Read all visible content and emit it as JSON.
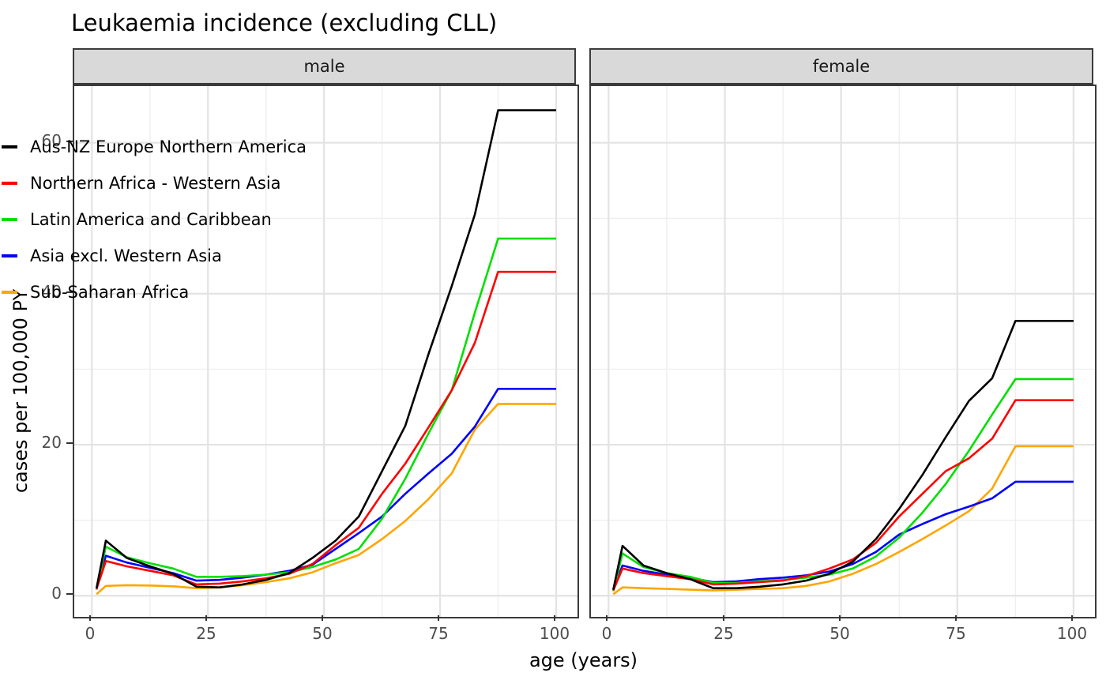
{
  "chart_data": {
    "type": "line",
    "title": "Leukaemia incidence (excluding CLL)",
    "xlabel": "age (years)",
    "ylabel": "cases per 100,000 PY",
    "facets": [
      {
        "label": "male"
      },
      {
        "label": "female"
      }
    ],
    "x_ticks": [
      0,
      25,
      50,
      75,
      100
    ],
    "x_minor_gridlines": [
      12.5,
      37.5,
      62.5,
      87.5
    ],
    "y_ticks": [
      0,
      20,
      40,
      60
    ],
    "y_minor_gridlines": [
      10,
      30,
      50
    ],
    "xlim": [
      -3.8,
      104.6
    ],
    "ylim": [
      -2.8,
      67.5
    ],
    "grid": true,
    "legend_position": "inside-left",
    "strip_fill": "#D9D9D9",
    "panel_border_color": "#3B3B3B",
    "major_grid_color": "#E3E3E3",
    "minor_grid_color": "#EFEFEF",
    "x": [
      1,
      3,
      7.5,
      12.5,
      17.5,
      22.5,
      27.5,
      32.5,
      37.5,
      42.5,
      47.5,
      52.5,
      57.5,
      62.5,
      67.5,
      72.5,
      77.5,
      82.5,
      87.5,
      100
    ],
    "series": [
      {
        "name": "Aus-NZ Europe Northern America",
        "color": "#000000",
        "male": [
          1.0,
          7.3,
          5.0,
          3.9,
          2.9,
          1.2,
          1.1,
          1.5,
          2.1,
          3.0,
          5.0,
          7.3,
          10.5,
          16.5,
          22.5,
          32.0,
          41.0,
          50.5,
          64.3,
          64.3
        ],
        "female": [
          0.8,
          6.6,
          4.0,
          3.0,
          2.2,
          1.0,
          1.0,
          1.2,
          1.5,
          2.0,
          2.9,
          4.5,
          7.5,
          11.5,
          16.0,
          21.0,
          25.8,
          28.8,
          36.4,
          36.4
        ]
      },
      {
        "name": "Northern Africa - Western Asia",
        "color": "#FF0000",
        "male": [
          0.9,
          4.6,
          3.9,
          3.3,
          2.7,
          1.5,
          1.6,
          1.9,
          2.3,
          2.9,
          4.2,
          6.7,
          9.0,
          13.5,
          17.5,
          22.3,
          27.2,
          33.5,
          42.9,
          42.9
        ],
        "female": [
          0.7,
          3.6,
          3.0,
          2.6,
          2.2,
          1.5,
          1.6,
          1.8,
          2.0,
          2.6,
          3.6,
          4.8,
          7.0,
          10.5,
          13.5,
          16.5,
          18.2,
          20.8,
          25.9,
          25.9
        ]
      },
      {
        "name": "Latin America and Caribbean",
        "color": "#00E000",
        "male": [
          0.8,
          6.5,
          5.1,
          4.3,
          3.6,
          2.5,
          2.5,
          2.6,
          2.8,
          3.1,
          3.8,
          4.8,
          6.2,
          10.2,
          15.5,
          21.5,
          27.2,
          37.5,
          47.3,
          47.3
        ],
        "female": [
          0.6,
          5.6,
          3.8,
          3.0,
          2.5,
          1.7,
          1.7,
          1.9,
          2.1,
          2.4,
          2.8,
          3.6,
          5.2,
          7.7,
          11.0,
          14.8,
          19.2,
          24.0,
          28.7,
          28.7
        ]
      },
      {
        "name": "Asia excl. Western Asia",
        "color": "#0000FF",
        "male": [
          1.0,
          5.3,
          4.4,
          3.7,
          3.0,
          2.0,
          2.1,
          2.4,
          2.8,
          3.3,
          4.1,
          6.2,
          8.3,
          10.5,
          13.5,
          16.2,
          18.8,
          22.4,
          27.4,
          27.4
        ],
        "female": [
          0.8,
          4.0,
          3.3,
          2.8,
          2.4,
          1.8,
          1.9,
          2.2,
          2.4,
          2.7,
          3.2,
          4.2,
          5.8,
          8.1,
          9.5,
          10.8,
          11.8,
          12.9,
          15.1,
          15.1
        ]
      },
      {
        "name": "Sub-Saharan Africa",
        "color": "#FFA500",
        "male": [
          0.2,
          1.3,
          1.4,
          1.35,
          1.25,
          1.0,
          1.1,
          1.4,
          1.8,
          2.3,
          3.1,
          4.3,
          5.4,
          7.5,
          9.9,
          12.8,
          16.2,
          22.0,
          25.4,
          25.4
        ],
        "female": [
          0.2,
          1.1,
          1.0,
          0.9,
          0.8,
          0.7,
          0.8,
          0.9,
          1.0,
          1.3,
          1.9,
          2.9,
          4.2,
          5.8,
          7.5,
          9.3,
          11.2,
          14.2,
          19.8,
          19.8
        ]
      }
    ]
  }
}
